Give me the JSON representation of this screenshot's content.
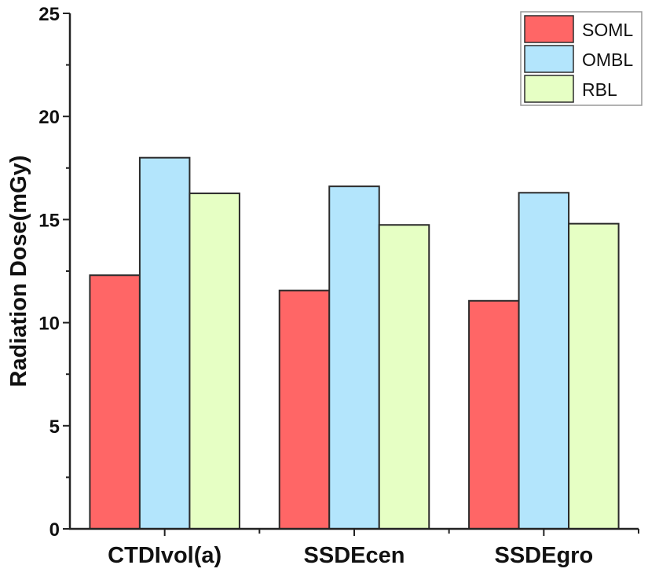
{
  "chart_data": {
    "type": "bar",
    "title": "",
    "xlabel": "",
    "ylabel": "Radiation Dose(mGy)",
    "ylim": [
      0,
      25
    ],
    "yticks": [
      0,
      5,
      10,
      15,
      20,
      25
    ],
    "ytick_labels": [
      "0",
      "5",
      "10",
      "15",
      "20",
      "25"
    ],
    "y_minor_step": 2.5,
    "grid": false,
    "categories": [
      "CTDIvol(a)",
      "SSDEcen",
      "SSDEgro"
    ],
    "series": [
      {
        "name": "SOML",
        "color": "#FF6666",
        "values": [
          12.3,
          11.56,
          11.06
        ]
      },
      {
        "name": "OMBL",
        "color": "#B3E5FC",
        "values": [
          18.0,
          16.61,
          16.3
        ]
      },
      {
        "name": "RBL",
        "color": "#E6FFC4",
        "values": [
          16.27,
          14.74,
          14.8
        ]
      }
    ],
    "legend": {
      "placement": "top-right",
      "entries": [
        "SOML",
        "OMBL",
        "RBL"
      ]
    }
  }
}
